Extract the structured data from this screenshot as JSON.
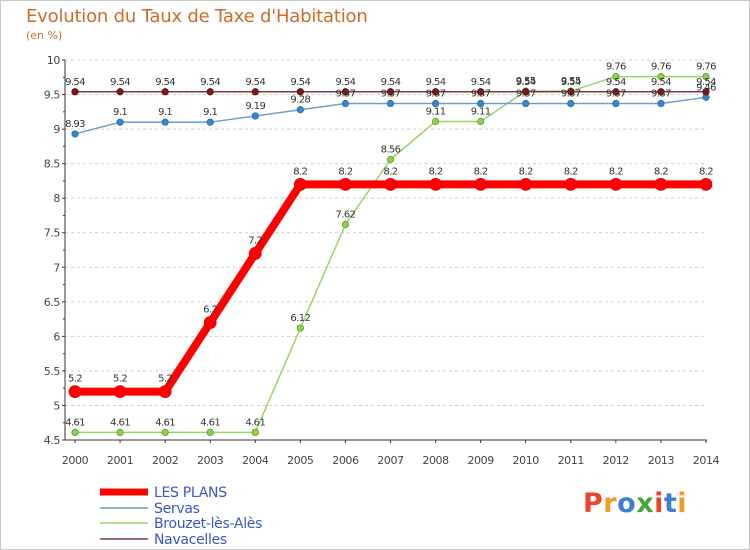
{
  "header": {
    "title": "Evolution du Taux de Taxe d'Habitation",
    "unit": "(en %)"
  },
  "logo": {
    "text": "Proxiti",
    "colors": [
      "#e8452c",
      "#f09a28",
      "#3b7fd0",
      "#4aa63c",
      "#e8452c",
      "#3b7fd0",
      "#f09a28"
    ]
  },
  "chart_data": {
    "type": "line",
    "title": "Evolution du Taux de Taxe d'Habitation",
    "ylabel": "(en %)",
    "xlabel": "",
    "x": [
      "2000",
      "2001",
      "2002",
      "2003",
      "2004",
      "2005",
      "2006",
      "2007",
      "2008",
      "2009",
      "2010",
      "2011",
      "2012",
      "2013",
      "2014"
    ],
    "ylim": [
      4.5,
      10
    ],
    "yticks": [
      "4.5",
      "5",
      "5.5",
      "6",
      "6.5",
      "7",
      "7.5",
      "8",
      "8.5",
      "9",
      "9.5",
      "10"
    ],
    "grid": "horizontal dashed",
    "legend": "bottom-left",
    "series": [
      {
        "name": "LES PLANS",
        "color": "#ff0000",
        "values": [
          5.2,
          5.2,
          5.2,
          6.2,
          7.2,
          8.2,
          8.2,
          8.2,
          8.2,
          8.2,
          8.2,
          8.2,
          8.2,
          8.2,
          8.2
        ],
        "labels": [
          "5.2",
          "5.2",
          "5.2",
          "6.2",
          "7.2",
          "8.2",
          "8.2",
          "8.2",
          "8.2",
          "8.2",
          "8.2",
          "8.2",
          "8.2",
          "8.2",
          "8.2"
        ]
      },
      {
        "name": "Servas",
        "color": "#6a9fd0",
        "values": [
          8.93,
          9.1,
          9.1,
          9.1,
          9.19,
          9.28,
          9.37,
          9.37,
          9.37,
          9.37,
          9.37,
          9.37,
          9.37,
          9.37,
          9.46
        ],
        "labels": [
          "8.93",
          "9.1",
          "9.1",
          "9.1",
          "9.19",
          "9.28",
          "9.37",
          "9.37",
          "9.37",
          "9.37",
          "9.37",
          "9.37",
          "9.37",
          "9.37",
          "9.46"
        ]
      },
      {
        "name": "Brouzet-lès-Alès",
        "color": "#99d36a",
        "values": [
          4.61,
          4.61,
          4.61,
          4.61,
          4.61,
          6.12,
          7.62,
          8.56,
          9.11,
          9.11,
          9.55,
          9.55,
          9.76,
          9.76,
          9.76
        ],
        "labels": [
          "4.61",
          "4.61",
          "4.61",
          "4.61",
          "4.61",
          "6.12",
          "7.62",
          "8.56",
          "9.11",
          "9.11",
          "9.55",
          "9.55",
          "9.76",
          "9.76",
          "9.76"
        ]
      },
      {
        "name": "Navacelles",
        "color": "#7a3a3a",
        "values": [
          9.54,
          9.54,
          9.54,
          9.54,
          9.54,
          9.54,
          9.54,
          9.54,
          9.54,
          9.54,
          9.54,
          9.54,
          9.54,
          9.54,
          9.54
        ],
        "labels": [
          "9.54",
          "9.54",
          "9.54",
          "9.54",
          "9.54",
          "9.54",
          "9.54",
          "9.54",
          "9.54",
          "9.54",
          "9.54",
          "9.54",
          "9.54",
          "9.54",
          "9.54"
        ]
      }
    ]
  }
}
